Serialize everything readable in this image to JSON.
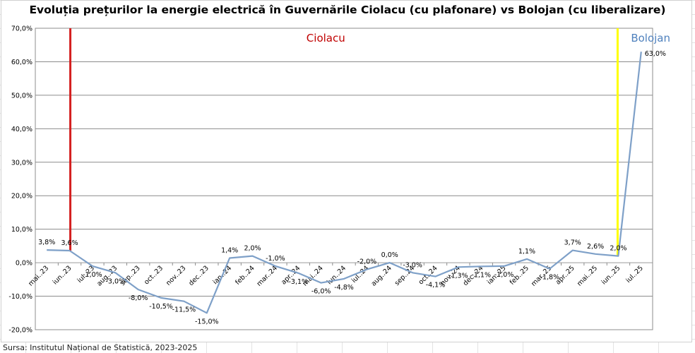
{
  "chart_data": {
    "type": "line",
    "title": "Evoluția prețurilor la energie electrică în Guvernările Ciolacu (cu plafonare) vs Bolojan (cu liberalizare)",
    "ylim": [
      -20,
      70
    ],
    "yticks": [
      -20,
      -10,
      0,
      10,
      20,
      30,
      40,
      50,
      60,
      70
    ],
    "ytick_labels": [
      "-20,0%",
      "-10,0%",
      "0,0%",
      "10,0%",
      "20,0%",
      "30,0%",
      "40,0%",
      "50,0%",
      "60,0%",
      "70,0%"
    ],
    "grid": true,
    "categories": [
      "mai..23",
      "iun..23",
      "iul..23",
      "aug..23",
      "sep..23",
      "oct..23",
      "nov..23",
      "dec..23",
      "ian..24",
      "feb..24",
      "mar..24",
      "apr..24",
      "mai..24",
      "iun..24",
      "iul..24",
      "aug..24",
      "sep..24",
      "oct..24",
      "nov..24",
      "dec..24",
      "ian..25",
      "feb..25",
      "mar..25",
      "apr..25",
      "mai..25",
      "iun..25",
      "iul..25"
    ],
    "series": [
      {
        "color": "#7ea0c8",
        "values": [
          3.8,
          3.6,
          -1.0,
          -3.0,
          -8.0,
          -10.5,
          -11.5,
          -15.0,
          1.4,
          2.0,
          -1.0,
          -3.1,
          -6.0,
          -4.8,
          -2.0,
          0.0,
          -3.0,
          -4.1,
          -1.3,
          -1.1,
          -1.0,
          1.1,
          -1.8,
          3.7,
          2.6,
          2.0,
          63.0
        ],
        "labels": [
          "3,8%",
          "3,6%",
          "-1,0%",
          "-3,0%",
          "-8,0%",
          "-10,5%",
          "-11,5%",
          "-15,0%",
          "1,4%",
          "2,0%",
          "-1,0%",
          "-3,1%",
          "-6,0%",
          "-4,8%",
          "-2,0%",
          "0,0%",
          "-3,0%",
          "-4,1%",
          "-1,3%",
          "-1,1%",
          "-1,0%",
          "1,1%",
          "-1,8%",
          "3,7%",
          "2,6%",
          "2,0%",
          "63,0%"
        ]
      }
    ],
    "markers": [
      {
        "label": "Ciolacu",
        "color": "#d42020",
        "label_color": "#c00000"
      },
      {
        "label": "Bolojan",
        "color": "#ffff00",
        "label_color": "#4f81bd"
      }
    ]
  },
  "source": "Sursa: Institutul Național de Statistică, 2023-2025"
}
